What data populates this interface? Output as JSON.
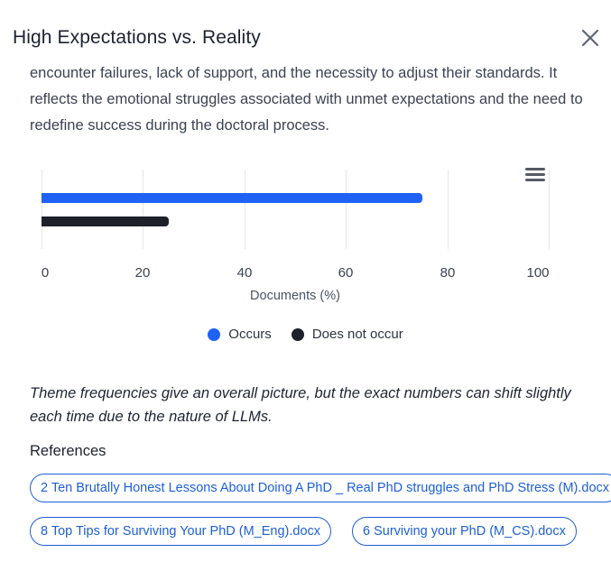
{
  "header": {
    "title": "High Expectations vs. Reality"
  },
  "description": "encounter failures, lack of support, and the necessity to adjust their standards. It reflects the emotional struggles associated with unmet expectations and the need to redefine success during the doctoral process.",
  "colors": {
    "occurs": "#1f63f5",
    "does_not_occur": "#1e212a",
    "link": "#1d5fd6"
  },
  "chart_data": {
    "type": "bar",
    "orientation": "horizontal",
    "categories": [
      "High Expectations vs. Reality"
    ],
    "series": [
      {
        "name": "Occurs",
        "values": [
          75
        ],
        "color": "#1f63f5"
      },
      {
        "name": "Does not occur",
        "values": [
          25
        ],
        "color": "#1e212a"
      }
    ],
    "title": "",
    "xlabel": "Documents (%)",
    "ylabel": "",
    "xlim": [
      0,
      100
    ],
    "xticks": [
      "0",
      "20",
      "40",
      "60",
      "80",
      "100"
    ],
    "grid": true,
    "legend_position": "bottom"
  },
  "legend": [
    {
      "label": "Occurs"
    },
    {
      "label": "Does not occur"
    }
  ],
  "note": "Theme frequencies give an overall picture, but the exact numbers can shift slightly each time due to the nature of LLMs.",
  "references": {
    "title": "References",
    "items": [
      {
        "label": "2 Ten Brutally Honest Lessons About Doing A PhD _ Real PhD struggles and PhD Stress (M).docx"
      },
      {
        "label": "8 Top Tips for Surviving Your PhD (M_Eng).docx"
      },
      {
        "label": "6 Surviving your PhD (M_CS).docx"
      }
    ]
  }
}
